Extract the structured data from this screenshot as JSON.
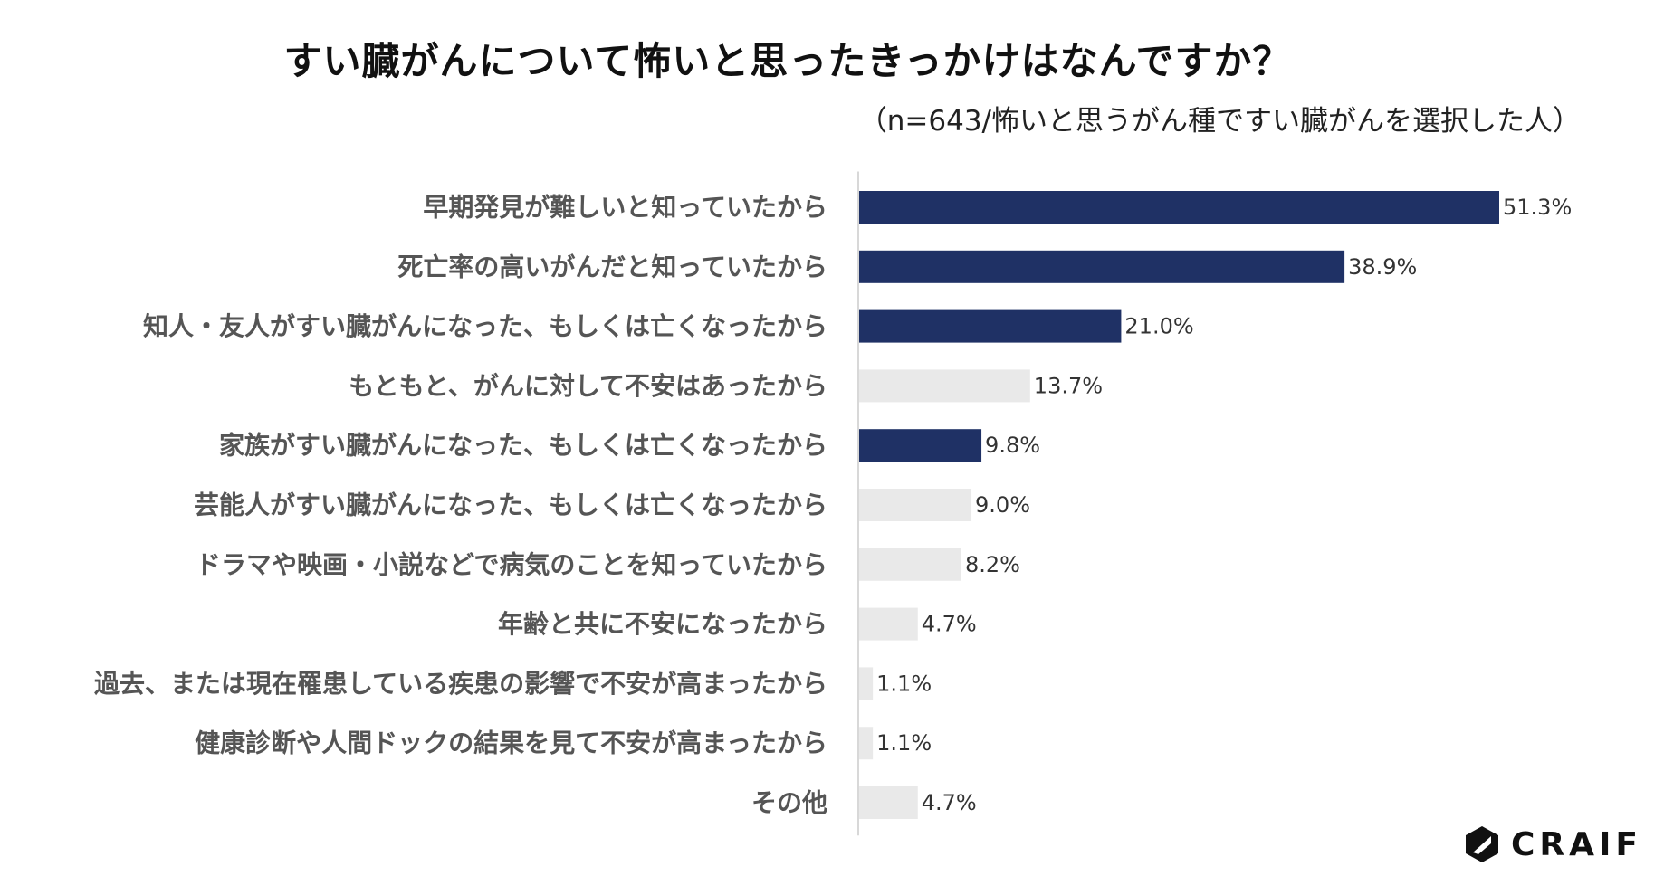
{
  "chart_data": {
    "type": "bar",
    "orientation": "horizontal",
    "title": "すい臓がんについて怖いと思ったきっかけはなんですか？",
    "subtitle": "（n=643/怖いと思うがん種ですい臓がんを選択した人）",
    "categories": [
      "早期発見が難しいと知っていたから",
      "死亡率の高いがんだと知っていたから",
      "知人・友人がすい臓がんになった、もしくは亡くなったから",
      "もともと、がんに対して不安はあったから",
      "家族がすい臓がんになった、もしくは亡くなったから",
      "芸能人がすい臓がんになった、もしくは亡くなったから",
      "ドラマや映画・小説などで病気のことを知っていたから",
      "年齢と共に不安になったから",
      "過去、または現在罹患している疾患の影響で不安が高まったから",
      "健康診断や人間ドックの結果を見て不安が高まったから",
      "その他"
    ],
    "values": [
      51.3,
      38.9,
      21.0,
      13.7,
      9.8,
      9.0,
      8.2,
      4.7,
      1.1,
      1.1,
      4.7
    ],
    "value_labels": [
      "51.3%",
      "38.9%",
      "21.0%",
      "13.7%",
      "9.8%",
      "9.0%",
      "8.2%",
      "4.7%",
      "1.1%",
      "1.1%",
      "4.7%"
    ],
    "highlighted": [
      true,
      true,
      true,
      false,
      true,
      false,
      false,
      false,
      false,
      false,
      false
    ],
    "xlim": [
      0,
      51.3
    ],
    "grid": false,
    "legend": "none",
    "colors": {
      "highlight": "#1f3165",
      "default": "#e9e9e9",
      "axis": "#cccccc",
      "label": "#555555",
      "value_label": "#333333"
    }
  },
  "logo": {
    "text": "CRAIF",
    "icon": "craif-hexagon-logo-icon"
  }
}
